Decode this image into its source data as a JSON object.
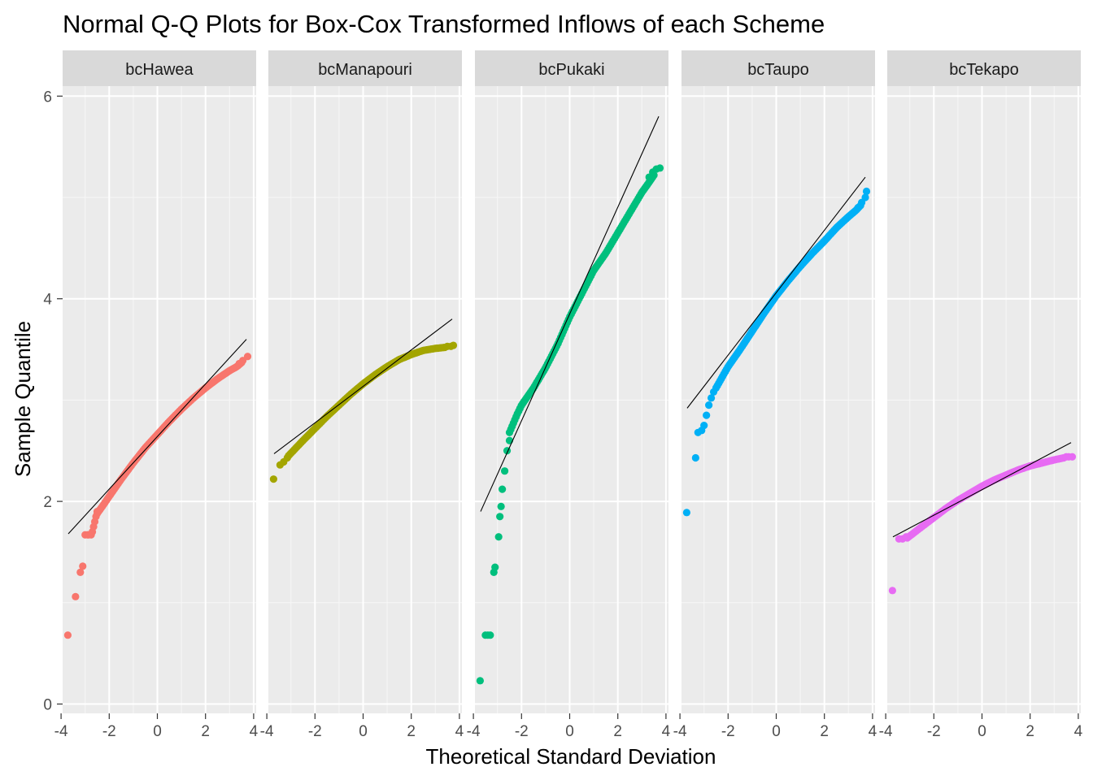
{
  "chart_data": {
    "type": "scatter",
    "title": "Normal Q-Q Plots for Box-Cox Transformed Inflows of each Scheme",
    "xlabel": "Theoretical Standard Deviation",
    "ylabel": "Sample Quantile",
    "xlim": [
      -4,
      4
    ],
    "ylim": [
      0,
      6
    ],
    "x_ticks": [
      -4,
      -2,
      0,
      2,
      4
    ],
    "x_tick_labels": [
      "-4",
      "-2",
      "0",
      "2",
      "4"
    ],
    "y_ticks": [
      0,
      2,
      4,
      6
    ],
    "y_tick_labels": [
      "0",
      "2",
      "4",
      "6"
    ],
    "grid": true,
    "legend": "none",
    "facets": [
      {
        "name": "bcHawea",
        "color": "#F8766D",
        "reference_line": [
          [
            -3.7,
            1.68
          ],
          [
            3.7,
            3.6
          ]
        ],
        "tail_points_low": [
          [
            -3.72,
            0.68
          ],
          [
            -3.4,
            1.06
          ],
          [
            -3.2,
            1.3
          ],
          [
            -3.1,
            1.36
          ],
          [
            -3.0,
            1.67
          ],
          [
            -2.9,
            1.67
          ],
          [
            -2.85,
            1.67
          ],
          [
            -2.75,
            1.67
          ],
          [
            -2.7,
            1.7
          ],
          [
            -2.65,
            1.75
          ],
          [
            -2.6,
            1.8
          ],
          [
            -2.55,
            1.85
          ],
          [
            -2.5,
            1.9
          ]
        ],
        "curve": [
          [
            -2.5,
            1.88
          ],
          [
            -2.2,
            1.98
          ],
          [
            -2.0,
            2.05
          ],
          [
            -1.5,
            2.22
          ],
          [
            -1.0,
            2.38
          ],
          [
            -0.5,
            2.53
          ],
          [
            0.0,
            2.66
          ],
          [
            0.5,
            2.79
          ],
          [
            1.0,
            2.91
          ],
          [
            1.5,
            3.02
          ],
          [
            2.0,
            3.12
          ],
          [
            2.5,
            3.21
          ],
          [
            3.0,
            3.29
          ],
          [
            3.3,
            3.33
          ],
          [
            3.5,
            3.37
          ]
        ],
        "tail_points_high": [
          [
            3.4,
            3.36
          ],
          [
            3.55,
            3.39
          ],
          [
            3.75,
            3.43
          ]
        ]
      },
      {
        "name": "bcManapouri",
        "color": "#A3A500",
        "reference_line": [
          [
            -3.7,
            2.47
          ],
          [
            3.7,
            3.8
          ]
        ],
        "tail_points_low": [
          [
            -3.72,
            2.22
          ],
          [
            -3.45,
            2.36
          ],
          [
            -3.3,
            2.39
          ],
          [
            -3.15,
            2.43
          ]
        ],
        "curve": [
          [
            -3.1,
            2.45
          ],
          [
            -2.5,
            2.6
          ],
          [
            -2.0,
            2.72
          ],
          [
            -1.5,
            2.84
          ],
          [
            -1.0,
            2.95
          ],
          [
            -0.5,
            3.06
          ],
          [
            0.0,
            3.16
          ],
          [
            0.5,
            3.25
          ],
          [
            1.0,
            3.33
          ],
          [
            1.5,
            3.4
          ],
          [
            2.0,
            3.45
          ],
          [
            2.5,
            3.49
          ],
          [
            3.0,
            3.51
          ],
          [
            3.4,
            3.52
          ]
        ],
        "tail_points_high": [
          [
            3.5,
            3.53
          ],
          [
            3.65,
            3.53
          ],
          [
            3.75,
            3.54
          ]
        ]
      },
      {
        "name": "bcPukaki",
        "color": "#00BF7D",
        "reference_line": [
          [
            -3.7,
            1.9
          ],
          [
            3.7,
            5.8
          ]
        ],
        "tail_points_low": [
          [
            -3.72,
            0.23
          ],
          [
            -3.5,
            0.68
          ],
          [
            -3.4,
            0.68
          ],
          [
            -3.3,
            0.68
          ],
          [
            -3.15,
            1.3
          ],
          [
            -3.1,
            1.35
          ],
          [
            -2.95,
            1.65
          ],
          [
            -2.9,
            1.85
          ],
          [
            -2.85,
            1.95
          ],
          [
            -2.8,
            2.12
          ],
          [
            -2.7,
            2.3
          ],
          [
            -2.6,
            2.5
          ],
          [
            -2.5,
            2.6
          ]
        ],
        "curve": [
          [
            -2.5,
            2.68
          ],
          [
            -2.2,
            2.85
          ],
          [
            -2.0,
            2.95
          ],
          [
            -1.5,
            3.12
          ],
          [
            -1.0,
            3.32
          ],
          [
            -0.5,
            3.55
          ],
          [
            0.0,
            3.82
          ],
          [
            0.5,
            4.05
          ],
          [
            1.0,
            4.28
          ],
          [
            1.5,
            4.45
          ],
          [
            2.0,
            4.65
          ],
          [
            2.5,
            4.85
          ],
          [
            3.0,
            5.05
          ],
          [
            3.3,
            5.15
          ],
          [
            3.5,
            5.22
          ]
        ],
        "tail_points_high": [
          [
            3.3,
            5.2
          ],
          [
            3.45,
            5.25
          ],
          [
            3.6,
            5.28
          ],
          [
            3.75,
            5.29
          ]
        ]
      },
      {
        "name": "bcTaupo",
        "color": "#00B0F6",
        "reference_line": [
          [
            -3.7,
            2.92
          ],
          [
            3.7,
            5.2
          ]
        ],
        "tail_points_low": [
          [
            -3.72,
            1.89
          ],
          [
            -3.35,
            2.43
          ],
          [
            -3.25,
            2.68
          ],
          [
            -3.1,
            2.7
          ],
          [
            -3.0,
            2.75
          ],
          [
            -2.9,
            2.85
          ],
          [
            -2.8,
            2.95
          ],
          [
            -2.7,
            3.02
          ],
          [
            -2.6,
            3.08
          ]
        ],
        "curve": [
          [
            -2.5,
            3.12
          ],
          [
            -2.0,
            3.33
          ],
          [
            -1.5,
            3.5
          ],
          [
            -1.0,
            3.68
          ],
          [
            -0.5,
            3.86
          ],
          [
            0.0,
            4.03
          ],
          [
            0.5,
            4.18
          ],
          [
            1.0,
            4.32
          ],
          [
            1.5,
            4.45
          ],
          [
            2.0,
            4.57
          ],
          [
            2.5,
            4.7
          ],
          [
            3.0,
            4.81
          ],
          [
            3.3,
            4.87
          ],
          [
            3.5,
            4.92
          ]
        ],
        "tail_points_high": [
          [
            3.4,
            4.9
          ],
          [
            3.55,
            4.95
          ],
          [
            3.7,
            5.0
          ],
          [
            3.75,
            5.06
          ]
        ]
      },
      {
        "name": "bcTekapo",
        "color": "#E76BF3",
        "reference_line": [
          [
            -3.7,
            1.65
          ],
          [
            3.7,
            2.58
          ]
        ],
        "tail_points_low": [
          [
            -3.72,
            1.12
          ],
          [
            -3.45,
            1.63
          ],
          [
            -3.3,
            1.63
          ],
          [
            -3.15,
            1.65
          ]
        ],
        "curve": [
          [
            -3.1,
            1.64
          ],
          [
            -2.5,
            1.75
          ],
          [
            -2.0,
            1.84
          ],
          [
            -1.5,
            1.93
          ],
          [
            -1.0,
            2.01
          ],
          [
            -0.5,
            2.08
          ],
          [
            0.0,
            2.15
          ],
          [
            0.5,
            2.21
          ],
          [
            1.0,
            2.26
          ],
          [
            1.5,
            2.31
          ],
          [
            2.0,
            2.35
          ],
          [
            2.5,
            2.38
          ],
          [
            3.0,
            2.41
          ],
          [
            3.4,
            2.43
          ]
        ],
        "tail_points_high": [
          [
            3.5,
            2.44
          ],
          [
            3.6,
            2.44
          ],
          [
            3.75,
            2.44
          ]
        ]
      }
    ]
  }
}
